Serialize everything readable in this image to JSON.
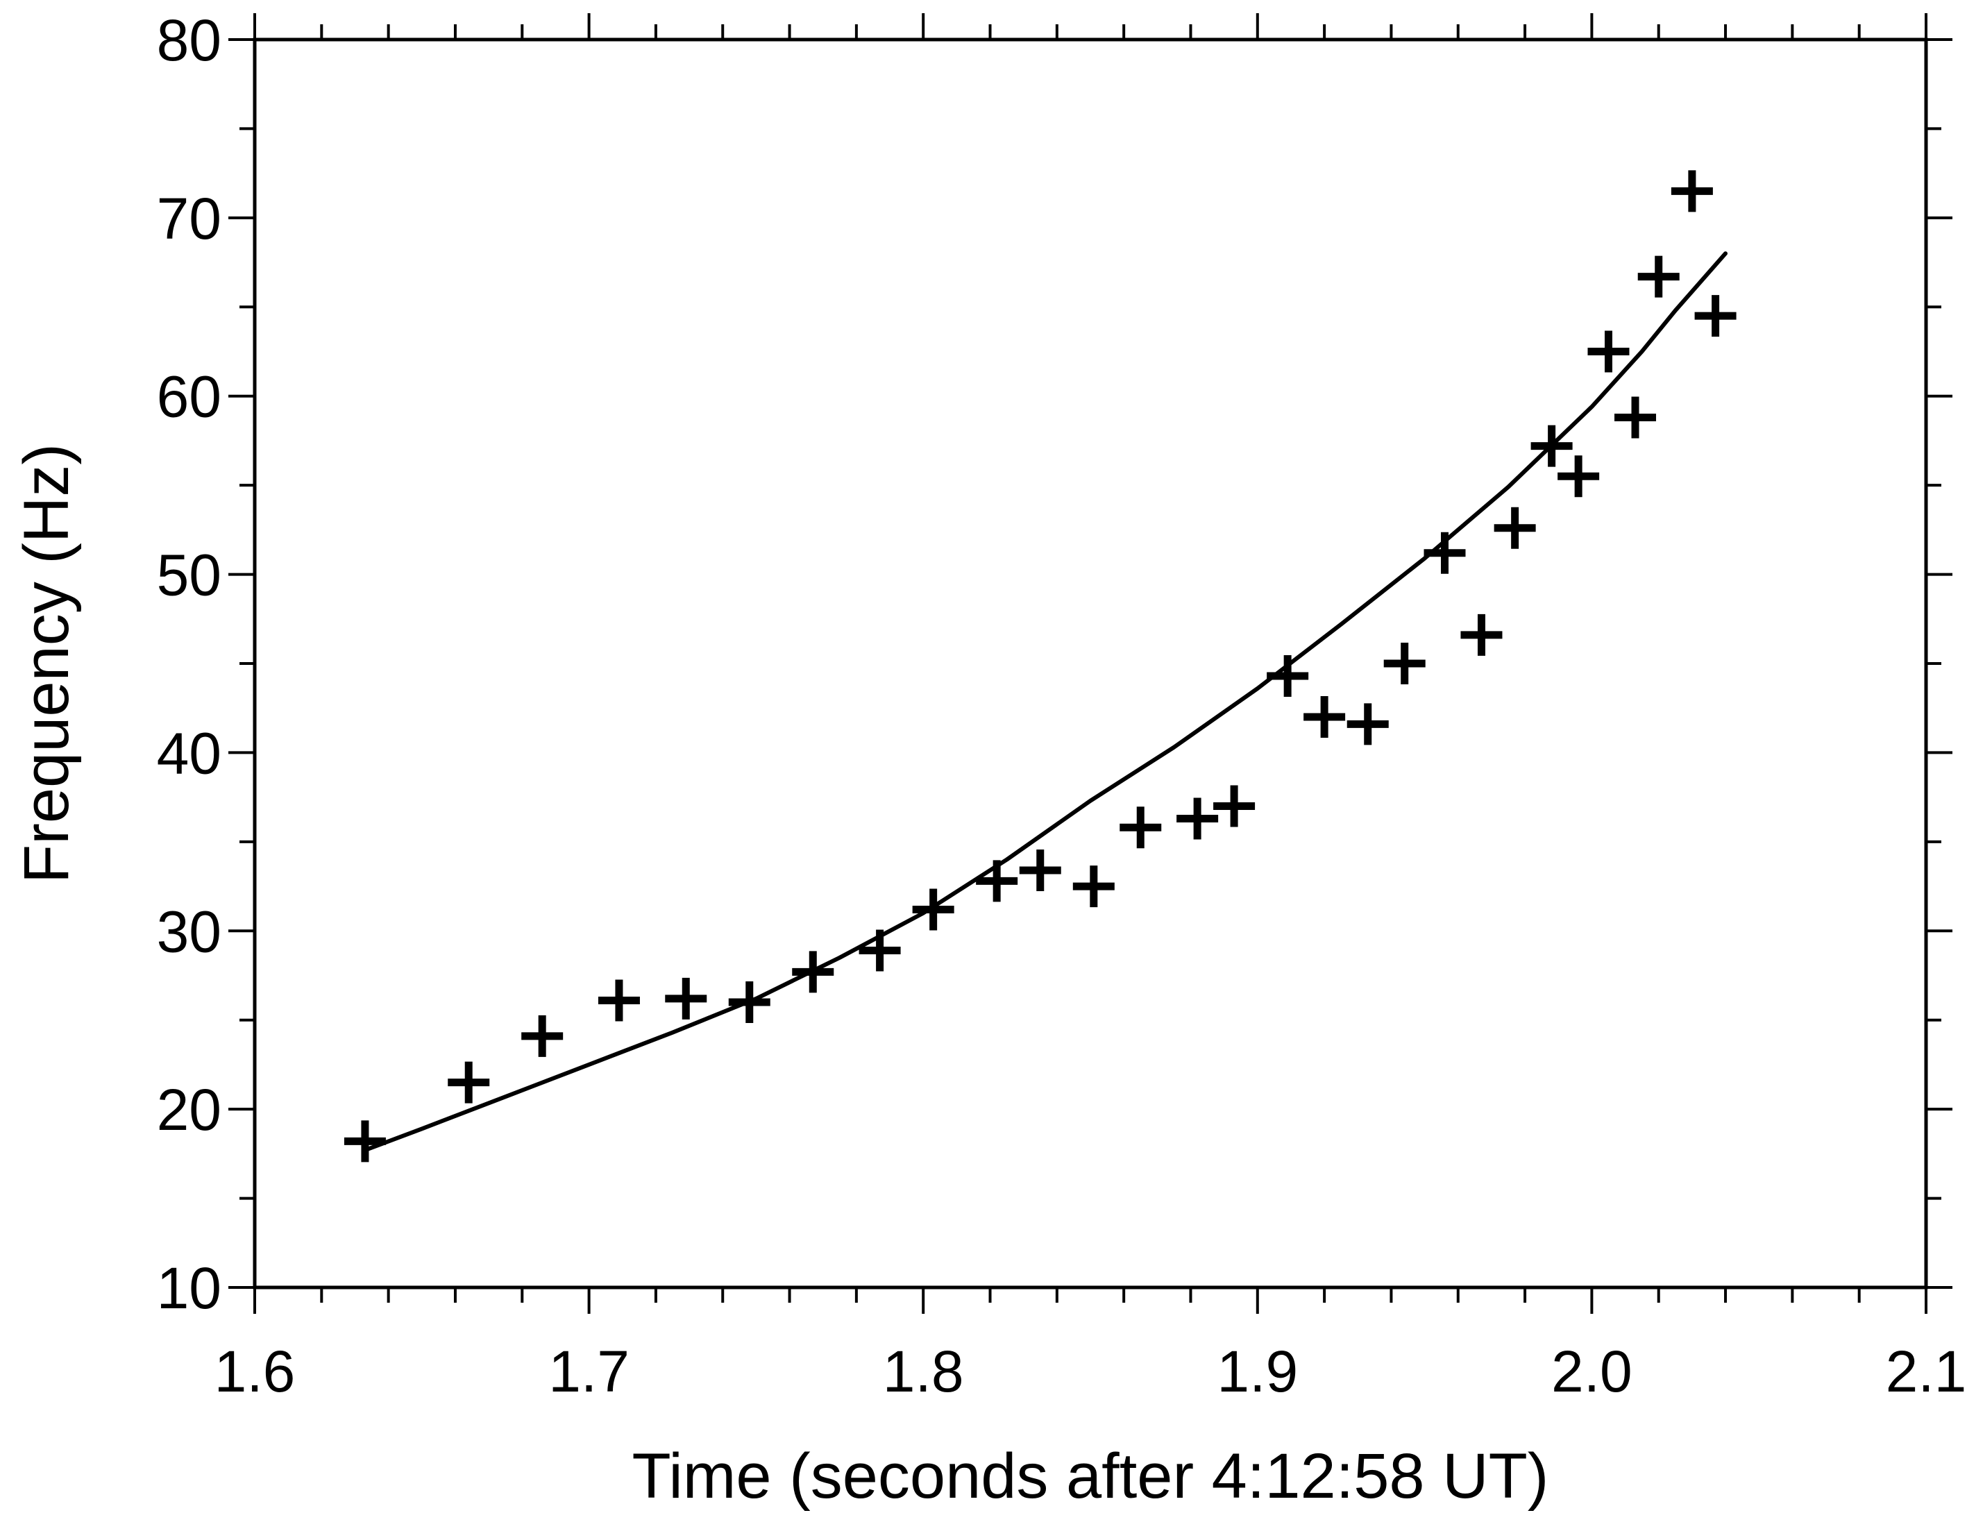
{
  "chart_data": {
    "type": "scatter",
    "title": "",
    "xlabel": "Time (seconds after 4:12:58 UT)",
    "ylabel": "Frequency (Hz)",
    "xlim": [
      1.6,
      2.1
    ],
    "ylim": [
      10,
      80
    ],
    "x_major_ticks": [
      1.6,
      1.7,
      1.8,
      1.9,
      2.0,
      2.1
    ],
    "x_tick_labels": [
      "1.6",
      "1.7",
      "1.8",
      "1.9",
      "2.0",
      "2.1"
    ],
    "x_minor_step": 0.02,
    "y_major_ticks": [
      10,
      20,
      30,
      40,
      50,
      60,
      70,
      80
    ],
    "y_tick_labels": [
      "10",
      "20",
      "30",
      "40",
      "50",
      "60",
      "70",
      "80"
    ],
    "y_minor_step": 5,
    "grid": false,
    "legend": "none",
    "colors": {
      "marker": "#000000",
      "line": "#000000",
      "axes": "#000000"
    },
    "series": [
      {
        "kind": "points",
        "marker": "plus",
        "x": [
          1.633,
          1.664,
          1.686,
          1.709,
          1.729,
          1.748,
          1.767,
          1.787,
          1.803,
          1.822,
          1.835,
          1.851,
          1.865,
          1.882,
          1.893,
          1.909,
          1.92,
          1.933,
          1.944,
          1.956,
          1.967,
          1.977,
          1.988,
          1.996,
          2.005,
          2.013,
          2.02,
          2.03,
          2.037
        ],
        "y": [
          18.2,
          21.5,
          24.1,
          26.1,
          26.2,
          26.0,
          27.7,
          28.9,
          31.2,
          32.8,
          33.4,
          32.5,
          35.8,
          36.3,
          37.0,
          44.3,
          42.0,
          41.6,
          45.0,
          51.2,
          46.6,
          52.6,
          57.2,
          55.5,
          62.5,
          58.8,
          66.7,
          71.5,
          64.5
        ]
      },
      {
        "kind": "line",
        "x": [
          1.633,
          1.65,
          1.675,
          1.7,
          1.725,
          1.75,
          1.775,
          1.8,
          1.825,
          1.85,
          1.875,
          1.9,
          1.925,
          1.95,
          1.975,
          2.0,
          2.015,
          2.025,
          2.04
        ],
        "y": [
          17.7,
          18.9,
          20.7,
          22.5,
          24.3,
          26.2,
          28.5,
          31.0,
          34.0,
          37.3,
          40.3,
          43.6,
          47.2,
          50.9,
          54.9,
          59.4,
          62.5,
          64.8,
          68.0
        ]
      }
    ]
  }
}
